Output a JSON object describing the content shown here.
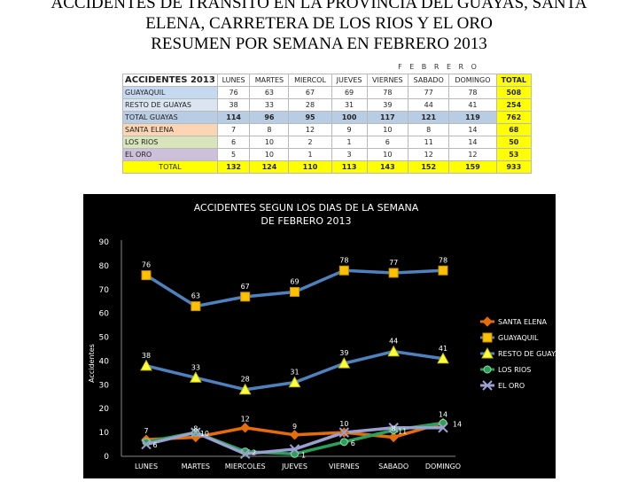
{
  "title": {
    "line1": "ACCIDENTES DE TRANSITO EN LA PROVINCIA DEL GUAYAS, SANTA",
    "line2": "ELENA, CARRETERA DE LOS RIOS Y EL ORO",
    "line3": "RESUMEN POR SEMANA EN FEBRERO 2013"
  },
  "table": {
    "month": "F E B R E R O",
    "header_name": "ACCIDENTES 2013",
    "columns": [
      "LUNES",
      "MARTES",
      "MIERCOL",
      "JUEVES",
      "VIERNES",
      "SABADO",
      "DOMINGO",
      "TOTAL"
    ],
    "rows": [
      {
        "label": "GUAYAQUIL",
        "values": [
          "76",
          "63",
          "67",
          "69",
          "78",
          "77",
          "78",
          "508"
        ],
        "color": "#c5d9f1"
      },
      {
        "label": "RESTO DE GUAYAS",
        "values": [
          "38",
          "33",
          "28",
          "31",
          "39",
          "44",
          "41",
          "254"
        ],
        "color": "#dbe5f1"
      },
      {
        "label": "TOTAL GUAYAS",
        "values": [
          "114",
          "96",
          "95",
          "100",
          "117",
          "121",
          "119",
          "762"
        ],
        "color": "#b8cce4"
      },
      {
        "label": "SANTA ELENA",
        "values": [
          "7",
          "8",
          "12",
          "9",
          "10",
          "8",
          "14",
          "68"
        ],
        "color": "#fcd5b4"
      },
      {
        "label": "LOS RIOS",
        "values": [
          "6",
          "10",
          "2",
          "1",
          "6",
          "11",
          "14",
          "50"
        ],
        "color": "#d8e4bc"
      },
      {
        "label": "EL ORO",
        "values": [
          "5",
          "10",
          "1",
          "3",
          "10",
          "12",
          "12",
          "53"
        ],
        "color": "#ccc0da"
      },
      {
        "label": "TOTAL",
        "values": [
          "132",
          "124",
          "110",
          "113",
          "143",
          "152",
          "159",
          "933"
        ],
        "color": "#ffff00"
      }
    ],
    "total_col_color": "#ffff00"
  },
  "chart_data": {
    "type": "line",
    "title": "ACCIDENTES SEGUN LOS DIAS DE LA SEMANA",
    "subtitle": "DE  FEBRERO 2013",
    "ylabel": "Accidentes",
    "xlabel": "",
    "categories": [
      "LUNES",
      "MARTES",
      "MIERCOLES",
      "JUEVES",
      "VIERNES",
      "SABADO",
      "DOMINGO"
    ],
    "ylim": [
      0,
      90
    ],
    "yticks": [
      0,
      10,
      20,
      30,
      40,
      50,
      60,
      70,
      80,
      90
    ],
    "grid": false,
    "legend_position": "right",
    "series": [
      {
        "name": "SANTA ELENA",
        "values": [
          7,
          8,
          12,
          9,
          10,
          8,
          14
        ],
        "color": "#e46c0a",
        "marker": "diamond"
      },
      {
        "name": "GUAYAQUIL",
        "values": [
          76,
          63,
          67,
          69,
          78,
          77,
          78
        ],
        "color": "#4f81bd",
        "marker": "square"
      },
      {
        "name": "RESTO DE GUAYAS",
        "values": [
          38,
          33,
          28,
          31,
          39,
          44,
          41
        ],
        "color": "#4f81bd",
        "marker": "triangle"
      },
      {
        "name": "LOS RIOS",
        "values": [
          6,
          10,
          2,
          1,
          6,
          11,
          14
        ],
        "color": "#2ca05a",
        "marker": "circle"
      },
      {
        "name": "EL ORO",
        "values": [
          5,
          10,
          1,
          3,
          10,
          12,
          12
        ],
        "color": "#9aa0d0",
        "marker": "x"
      }
    ],
    "data_labels": [
      {
        "series": 1,
        "labels": [
          "76",
          "63",
          "67",
          "69",
          "78",
          "77",
          "78"
        ]
      },
      {
        "series": 2,
        "labels": [
          "38",
          "33",
          "28",
          "31",
          "39",
          "44",
          "41"
        ]
      },
      {
        "series": 0,
        "labels": [
          "7",
          "8",
          "12",
          "9",
          "10",
          "8",
          "14"
        ]
      },
      {
        "series": 3,
        "labels": [
          "6",
          "10",
          "2",
          "1",
          "6",
          "11",
          "14"
        ]
      }
    ],
    "colors": {
      "background": "#000000",
      "text": "#ffffff",
      "marker_fill_yellow": "#ffc000"
    }
  }
}
